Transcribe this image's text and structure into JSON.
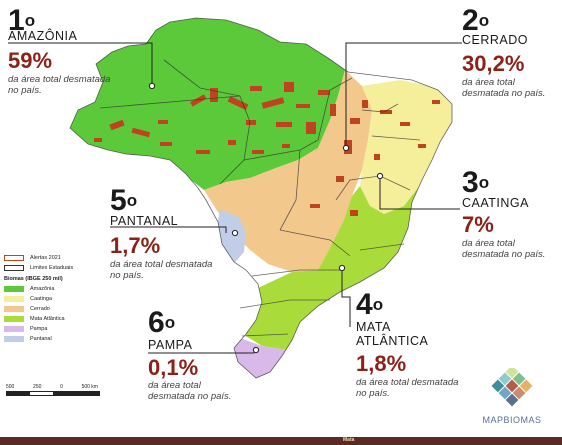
{
  "biomes": [
    {
      "rank": "1",
      "ordinal": "o",
      "name": "AMAZÔNIA",
      "percent": "59%",
      "note": "da área total desmatada no país."
    },
    {
      "rank": "2",
      "ordinal": "o",
      "name": "CERRADO",
      "percent": "30,2%",
      "note": "da área total desmatada no país."
    },
    {
      "rank": "3",
      "ordinal": "o",
      "name": "CAATINGA",
      "percent": "7%",
      "note": "da área total desmatada no país."
    },
    {
      "rank": "4",
      "ordinal": "o",
      "name": "MATA ATLÂNTICA",
      "name_line1": "MATA",
      "name_line2": "ATLÂNTICA",
      "percent": "1,8%",
      "note": "da área total desmatada no país."
    },
    {
      "rank": "5",
      "ordinal": "o",
      "name": "PANTANAL",
      "percent": "1,7%",
      "note": "da área total desmatada no país."
    },
    {
      "rank": "6",
      "ordinal": "o",
      "name": "PAMPA",
      "percent": "0,1%",
      "note": "da área total desmatada no país."
    }
  ],
  "legend": {
    "alerts_label": "Alertas 2021",
    "limits_label": "Limites Estaduais",
    "biomes_title": "Biomas (IBGE 250 mil)",
    "items": [
      {
        "label": "Amazônia",
        "color": "#5cc93a"
      },
      {
        "label": "Caatinga",
        "color": "#f5ee9a"
      },
      {
        "label": "Cerrado",
        "color": "#f2c88c"
      },
      {
        "label": "Mata Atlântica",
        "color": "#a9dc3a"
      },
      {
        "label": "Pampa",
        "color": "#d9b8ea"
      },
      {
        "label": "Pantanal",
        "color": "#c2cde8"
      }
    ],
    "alert_color": "#c0431f"
  },
  "scale": {
    "labels": [
      "500",
      "250",
      "0",
      "500 km"
    ]
  },
  "logo": {
    "text": "MAPBIOMAS"
  },
  "bottom": {
    "text": "Mata"
  }
}
